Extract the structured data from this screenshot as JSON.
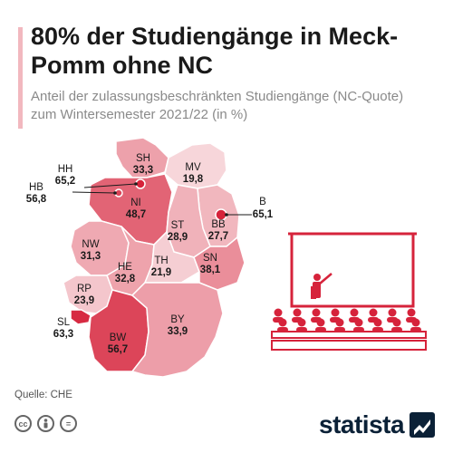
{
  "title": "80% der Studiengänge in Meck-Pomm ohne NC",
  "subtitle": "Anteil der zulassungsbeschränkten Studiengänge (NC-Quote) zum Wintersemester 2021/22 (in %)",
  "source": "Quelle: CHE",
  "brand": "statista",
  "icons": [
    "cc-icon",
    "person-icon",
    "equals-icon"
  ],
  "colors": {
    "accent": "#f2b8bf",
    "dark": "#d6233b",
    "light": "#f7d2d6",
    "brand": "#0b2137"
  },
  "chart_data": {
    "type": "choropleth-map",
    "categories": [
      "SH",
      "HH",
      "HB",
      "MV",
      "NI",
      "B",
      "ST",
      "BB",
      "NW",
      "HE",
      "TH",
      "SN",
      "RP",
      "SL",
      "BW",
      "BY"
    ],
    "values": [
      33.3,
      65.2,
      56.8,
      19.8,
      48.7,
      65.1,
      28.9,
      27.7,
      31.3,
      32.8,
      21.9,
      38.1,
      23.9,
      63.3,
      56.7,
      33.9
    ],
    "labels": {
      "SH": {
        "code": "SH",
        "value": "33,3"
      },
      "HH": {
        "code": "HH",
        "value": "65,2"
      },
      "HB": {
        "code": "HB",
        "value": "56,8"
      },
      "MV": {
        "code": "MV",
        "value": "19,8"
      },
      "NI": {
        "code": "NI",
        "value": "48,7"
      },
      "B": {
        "code": "B",
        "value": "65,1"
      },
      "ST": {
        "code": "ST",
        "value": "28,9"
      },
      "BB": {
        "code": "BB",
        "value": "27,7"
      },
      "NW": {
        "code": "NW",
        "value": "31,3"
      },
      "HE": {
        "code": "HE",
        "value": "32,8"
      },
      "TH": {
        "code": "TH",
        "value": "21,9"
      },
      "SN": {
        "code": "SN",
        "value": "38,1"
      },
      "RP": {
        "code": "RP",
        "value": "23,9"
      },
      "SL": {
        "code": "SL",
        "value": "63,3"
      },
      "BW": {
        "code": "BW",
        "value": "56,7"
      },
      "BY": {
        "code": "BY",
        "value": "33,9"
      }
    }
  }
}
